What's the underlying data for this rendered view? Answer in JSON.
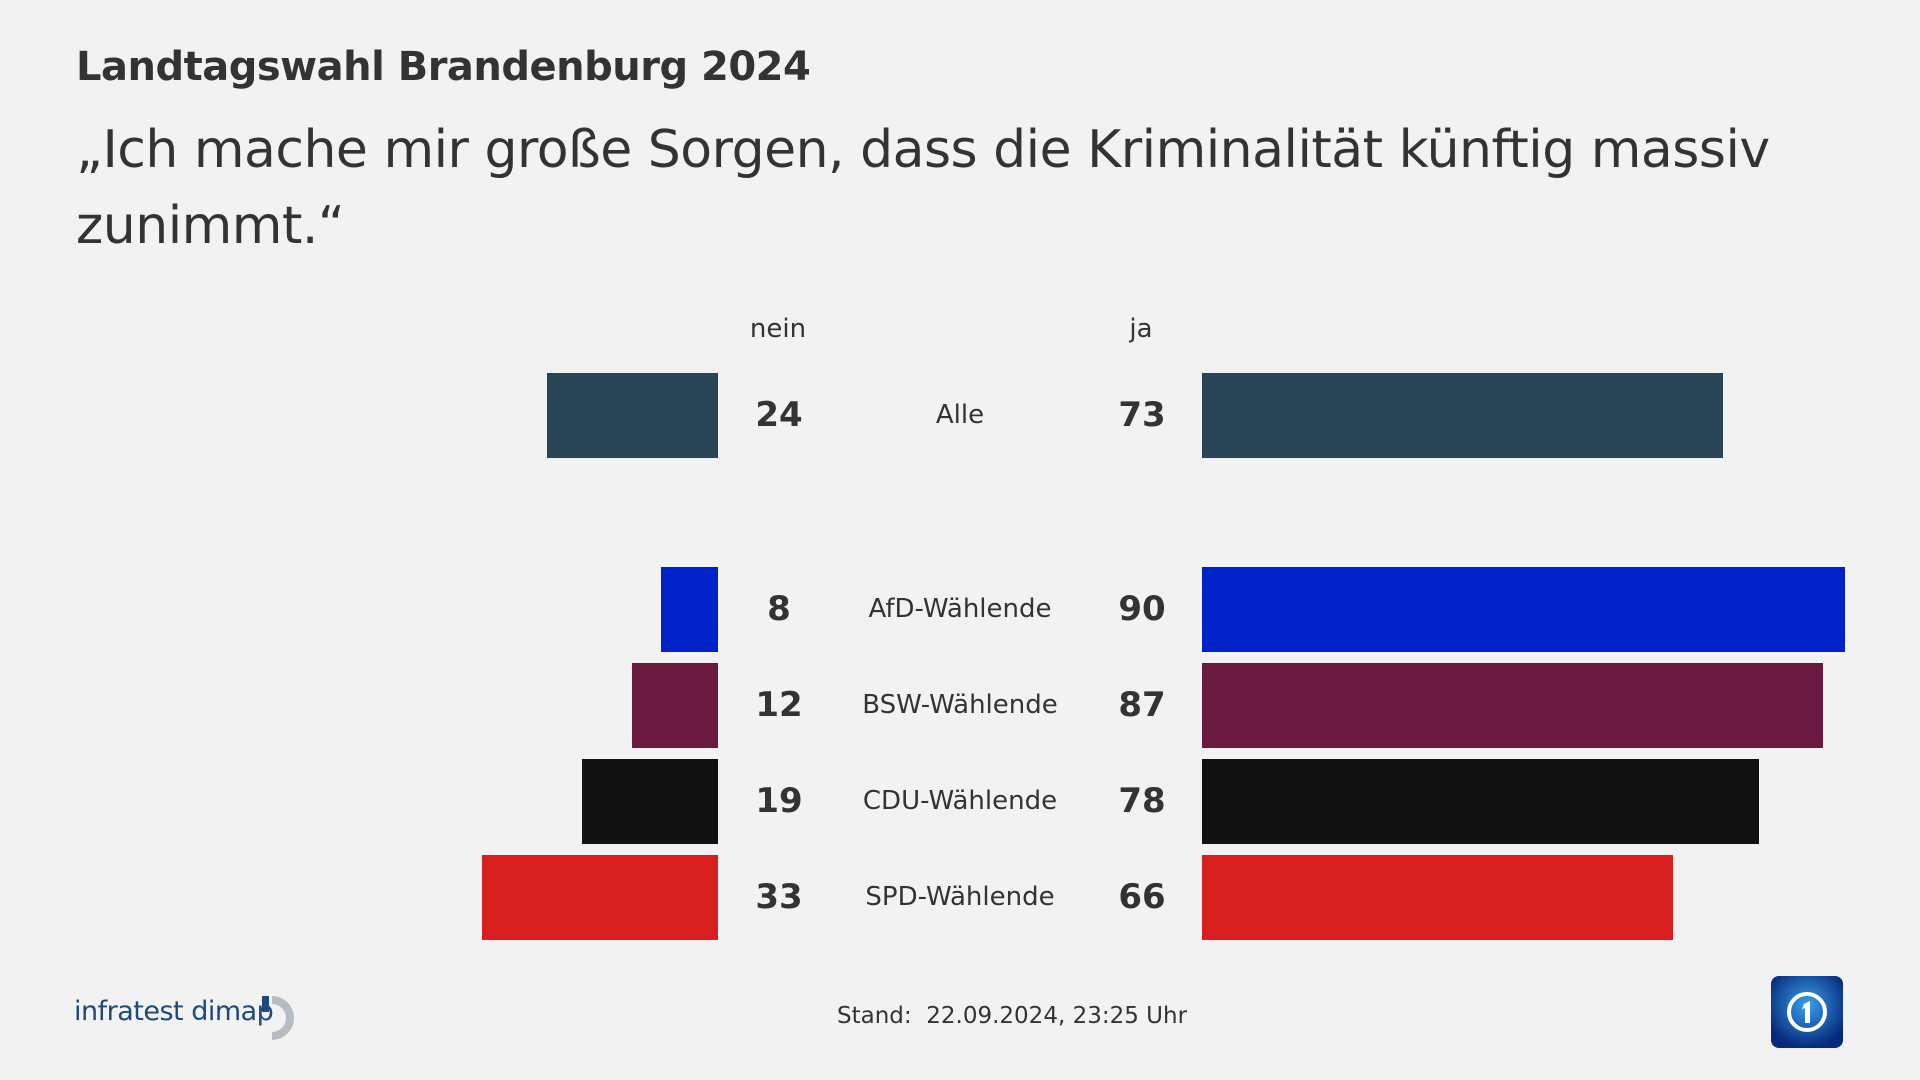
{
  "header": {
    "title": "Landtagswahl Brandenburg 2024",
    "subtitle": "„Ich mache mir große Sorgen, dass die Kriminalität künftig massiv zunimmt.“"
  },
  "chart_data": {
    "type": "bar",
    "orientation": "horizontal-diverging",
    "columns": [
      "nein",
      "ja"
    ],
    "categories": [
      "Alle",
      "AfD-Wählende",
      "BSW-Wählende",
      "CDU-Wählende",
      "SPD-Wählende"
    ],
    "series": [
      {
        "name": "nein",
        "values": [
          24,
          8,
          12,
          19,
          33
        ]
      },
      {
        "name": "ja",
        "values": [
          73,
          90,
          87,
          78,
          66
        ]
      }
    ],
    "colors": [
      "#2a4556",
      "#0022c8",
      "#6b1a3f",
      "#121212",
      "#d81f1f"
    ]
  },
  "footer": {
    "stand": "Stand:  22.09.2024, 23:25 Uhr",
    "brand": "infratest dimap",
    "broadcaster_logo": "ARD Das Erste"
  }
}
